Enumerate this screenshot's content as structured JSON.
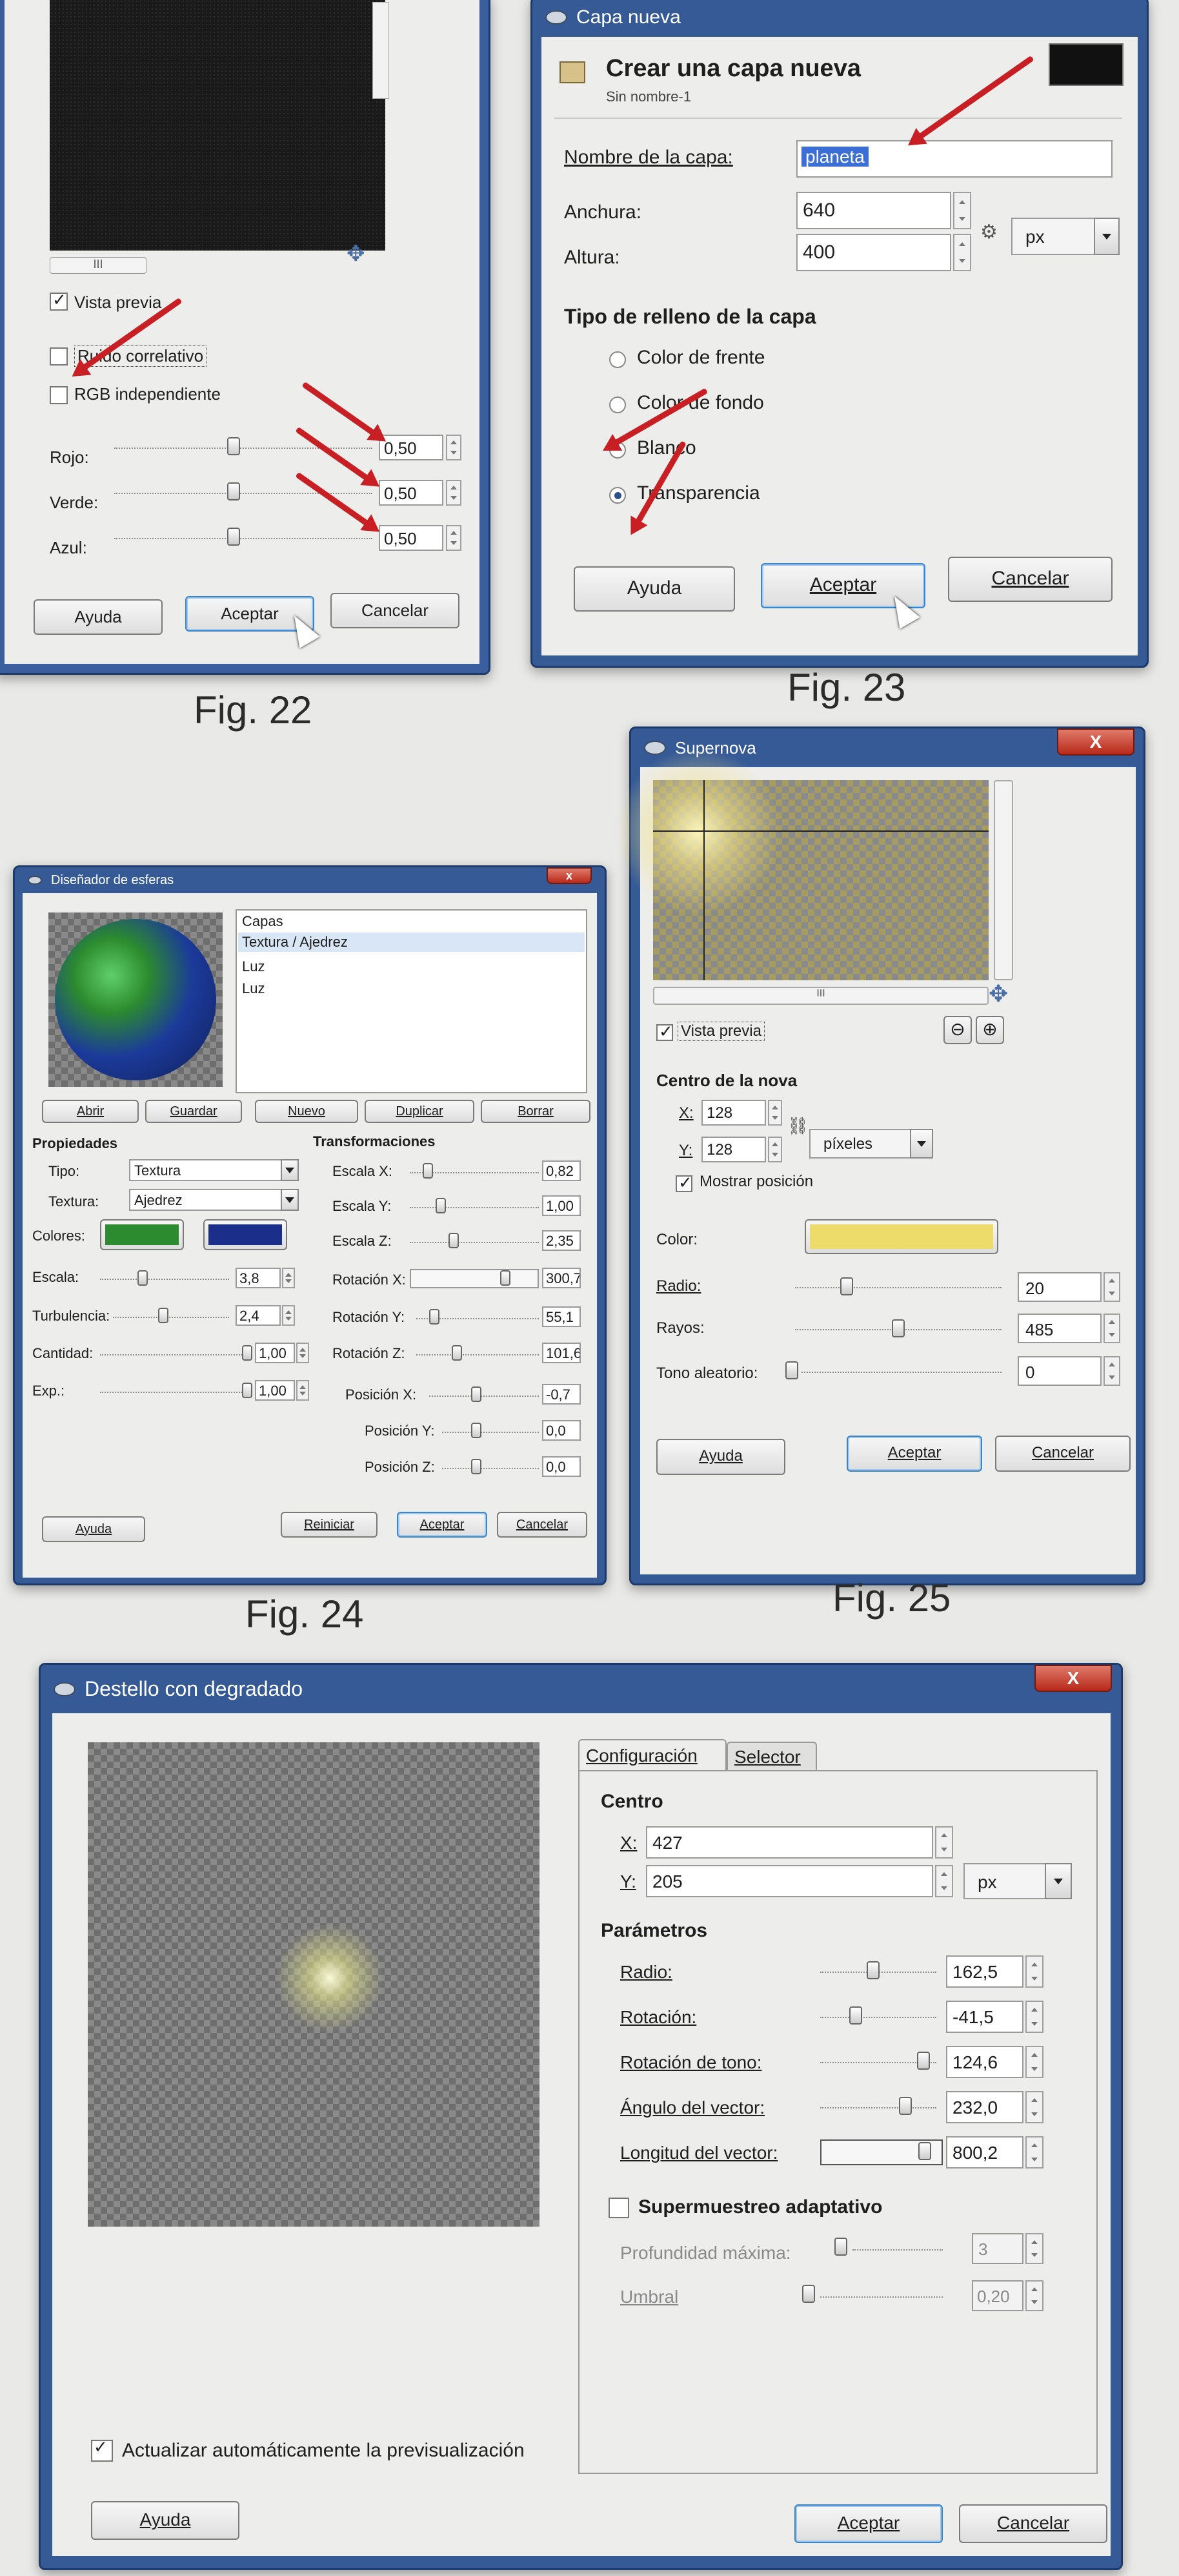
{
  "fig22": {
    "caption": "Fig. 22",
    "scroll_label": "III",
    "vista_previa": "Vista previa",
    "ruido_correlativo": "Ruido correlativo",
    "rgb_independiente": "RGB independiente",
    "sliders": [
      {
        "label": "Rojo:",
        "value": "0,50",
        "fraction": 0.5
      },
      {
        "label": "Verde:",
        "value": "0,50",
        "fraction": 0.5
      },
      {
        "label": "Azul:",
        "value": "0,50",
        "fraction": 0.5
      }
    ],
    "buttons": {
      "help": "Ayuda",
      "ok": "Aceptar",
      "cancel": "Cancelar"
    }
  },
  "fig23": {
    "caption": "Fig. 23",
    "window_title": "Capa nueva",
    "header_title": "Crear una capa nueva",
    "header_subtitle": "Sin nombre-1",
    "layer_name_label": "Nombre de la capa:",
    "layer_name_value": "planeta",
    "width_label": "Anchura:",
    "width_value": "640",
    "height_label": "Altura:",
    "height_value": "400",
    "unit_value": "px",
    "fill_title": "Tipo de relleno de la capa",
    "fill_options": [
      "Color de frente",
      "Color de fondo",
      "Blanco",
      "Transparencia"
    ],
    "selected_fill": "Transparencia",
    "buttons": {
      "help": "Ayuda",
      "ok": "Aceptar",
      "cancel": "Cancelar"
    }
  },
  "fig24": {
    "caption": "Fig. 24",
    "window_title": "Diseñador de esferas",
    "layers": [
      "Capas",
      "Textura / Ajedrez",
      "Luz",
      "Luz"
    ],
    "toolbar": [
      "Abrir",
      "Guardar",
      "Nuevo",
      "Duplicar",
      "Borrar"
    ],
    "properties_title": "Propiedades",
    "transforms_title": "Transformaciones",
    "tipo_label": "Tipo:",
    "tipo_value": "Textura",
    "textura_label": "Textura:",
    "textura_value": "Ajedrez",
    "colores_label": "Colores:",
    "colors": [
      "#2c8b2e",
      "#1b2f8a"
    ],
    "props": [
      {
        "label": "Escala:",
        "value": "3,8"
      },
      {
        "label": "Turbulencia:",
        "value": "2,4"
      },
      {
        "label": "Cantidad:",
        "value": "1,00"
      },
      {
        "label": "Exp.:",
        "value": "1,00"
      }
    ],
    "transforms": [
      {
        "label": "Escala X:",
        "value": "0,82"
      },
      {
        "label": "Escala Y:",
        "value": "1,00"
      },
      {
        "label": "Escala Z:",
        "value": "2,35"
      },
      {
        "label": "Rotación X:",
        "value": "300,7"
      },
      {
        "label": "Rotación Y:",
        "value": "55,1"
      },
      {
        "label": "Rotación Z:",
        "value": "101,6"
      },
      {
        "label": "Posición X:",
        "value": "-0,7"
      },
      {
        "label": "Posición Y:",
        "value": "0,0"
      },
      {
        "label": "Posición Z:",
        "value": "0,0"
      }
    ],
    "buttons": {
      "help": "Ayuda",
      "reset": "Reiniciar",
      "ok": "Aceptar",
      "cancel": "Cancelar"
    }
  },
  "fig25": {
    "caption": "Fig. 25",
    "window_title": "Supernova",
    "close": "X",
    "scroll_label": "III",
    "vista_previa": "Vista previa",
    "center_title": "Centro de la nova",
    "x_label": "X:",
    "x_value": "128",
    "y_label": "Y:",
    "y_value": "128",
    "unit_value": "píxeles",
    "show_position": "Mostrar posición",
    "color_label": "Color:",
    "color_value": "#eedc6a",
    "radio_label": "Radio:",
    "radio_value": "20",
    "rays_label": "Rayos:",
    "rays_value": "485",
    "random_label": "Tono aleatorio:",
    "random_value": "0",
    "buttons": {
      "help": "Ayuda",
      "ok": "Aceptar",
      "cancel": "Cancelar"
    }
  },
  "fig26": {
    "window_title": "Destello con degradado",
    "close": "X",
    "tabs": [
      "Configuración",
      "Selector"
    ],
    "center_title": "Centro",
    "x_label": "X:",
    "x_value": "427",
    "y_label": "Y:",
    "y_value": "205",
    "unit_value": "px",
    "params_title": "Parámetros",
    "params": [
      {
        "label": "Radio:",
        "value": "162,5"
      },
      {
        "label": "Rotación:",
        "value": "-41,5"
      },
      {
        "label": "Rotación de tono:",
        "value": "124,6"
      },
      {
        "label": "Ángulo del vector:",
        "value": "232,0"
      },
      {
        "label": "Longitud del vector:",
        "value": "800,2"
      }
    ],
    "supersample": "Supermuestreo adaptativo",
    "max_depth_label": "Profundidad máxima:",
    "max_depth_value": "3",
    "threshold_label": "Umbral",
    "threshold_value": "0,20",
    "auto_preview": "Actualizar automáticamente la previsualización",
    "buttons": {
      "help": "Ayuda",
      "ok": "Aceptar",
      "cancel": "Cancelar"
    }
  }
}
